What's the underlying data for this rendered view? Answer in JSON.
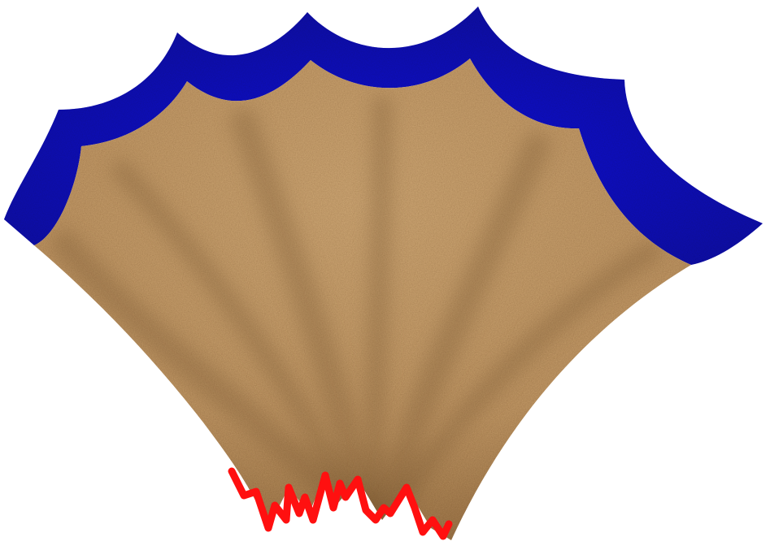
{
  "image": {
    "subject": "shell-shaped-fabric-drawing",
    "colors": {
      "background": "#ffffff",
      "fabric_base": "#c8a06e",
      "fabric_shadow": "#7a5a36",
      "top_border": "#1010d8",
      "top_border_dark": "#05058a",
      "bottom_fringe": "#ff1010"
    }
  }
}
